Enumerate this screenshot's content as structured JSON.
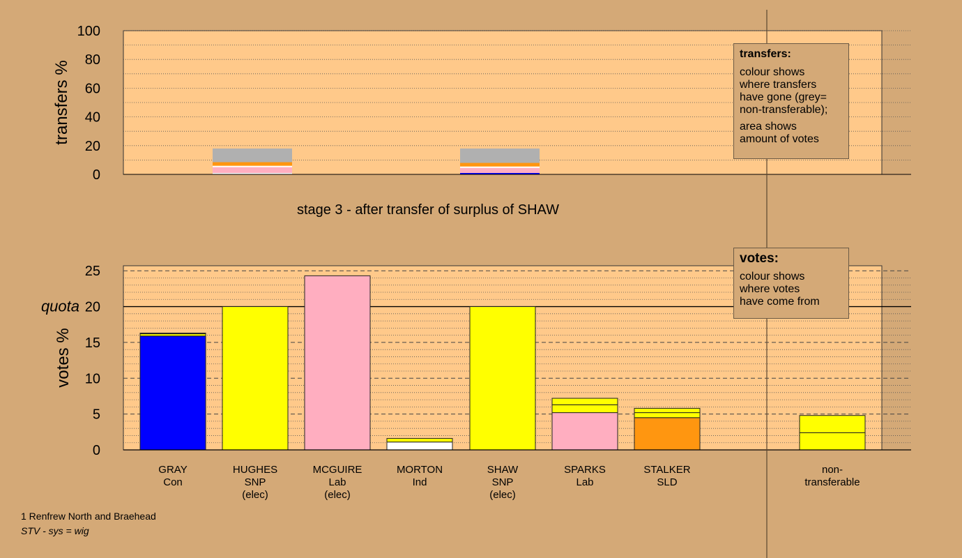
{
  "chart_data": [
    {
      "type": "bar",
      "title": "",
      "ylabel": "transfers %",
      "ylim": [
        0,
        100
      ],
      "yticks": [
        0,
        20,
        40,
        60,
        80,
        100
      ],
      "grid": "dotted",
      "bars": [
        {
          "candidate": "HUGHES",
          "segments": [
            {
              "color": "#ffffff",
              "value": 1
            },
            {
              "color": "#ffaec0",
              "value": 4
            },
            {
              "color": "#ffffff",
              "value": 1
            },
            {
              "color": "#ff9610",
              "value": 2.5
            },
            {
              "color": "#b0b0b0",
              "value": 9.5
            }
          ]
        },
        {
          "candidate": "SHAW",
          "segments": [
            {
              "color": "#0000ff",
              "value": 1
            },
            {
              "color": "#ffaec0",
              "value": 3.5
            },
            {
              "color": "#ffffff",
              "value": 1
            },
            {
              "color": "#ff9610",
              "value": 2.5
            },
            {
              "color": "#b0b0b0",
              "value": 10
            }
          ]
        }
      ]
    },
    {
      "type": "bar",
      "title": "stage 3 - after transfer of surplus of SHAW",
      "ylabel": "votes %",
      "ylim": [
        0,
        25
      ],
      "yticks": [
        0,
        5,
        10,
        15,
        20,
        25
      ],
      "quota": 20,
      "quota_label": "quota",
      "grid": "dashed-and-dotted",
      "categories": [
        {
          "name": "GRAY",
          "party": "Con",
          "status": ""
        },
        {
          "name": "HUGHES",
          "party": "SNP",
          "status": "(elec)"
        },
        {
          "name": "MCGUIRE",
          "party": "Lab",
          "status": "(elec)"
        },
        {
          "name": "MORTON",
          "party": "Ind",
          "status": ""
        },
        {
          "name": "SHAW",
          "party": "SNP",
          "status": "(elec)"
        },
        {
          "name": "SPARKS",
          "party": "Lab",
          "status": ""
        },
        {
          "name": "STALKER",
          "party": "SLD",
          "status": ""
        },
        {
          "name": "",
          "party": "",
          "status": ""
        },
        {
          "name": "non-",
          "party": "transferable",
          "status": ""
        }
      ],
      "bars": [
        {
          "segments": [
            {
              "color": "#0000ff",
              "value": 15.9
            },
            {
              "color": "#ffff00",
              "value": 0.3
            },
            {
              "color": "#ff9610",
              "value": 0.1
            }
          ]
        },
        {
          "segments": [
            {
              "color": "#ffff00",
              "value": 20
            }
          ]
        },
        {
          "segments": [
            {
              "color": "#ffaec0",
              "value": 24.3
            }
          ]
        },
        {
          "segments": [
            {
              "color": "#ffffff",
              "value": 1.1
            },
            {
              "color": "#ffff00",
              "value": 0.5
            }
          ]
        },
        {
          "segments": [
            {
              "color": "#ffff00",
              "value": 20
            }
          ]
        },
        {
          "segments": [
            {
              "color": "#ffaec0",
              "value": 5.2
            },
            {
              "color": "#ffff00",
              "value": 1.1
            },
            {
              "color": "#ffff00",
              "value": 0.9
            }
          ]
        },
        {
          "segments": [
            {
              "color": "#ff9610",
              "value": 4.5
            },
            {
              "color": "#ffff00",
              "value": 0.7
            },
            {
              "color": "#ffff00",
              "value": 0.6
            }
          ]
        },
        {
          "segments": []
        },
        {
          "segments": [
            {
              "color": "#ffff00",
              "value": 2.4
            },
            {
              "color": "#ffff00",
              "value": 2.4
            }
          ]
        }
      ]
    }
  ],
  "legend_transfers": {
    "title": "transfers:",
    "line1": "colour shows\nwhere transfers\nhave gone (grey=\nnon-transferable);",
    "line2": "area shows\namount of votes"
  },
  "legend_votes": {
    "title": "votes:",
    "line1": "colour shows\nwhere votes\nhave come from"
  },
  "footer": {
    "ward": "1 Renfrew North and Braehead",
    "system": "STV - sys = wig"
  },
  "colors": {
    "background": "#d4a977",
    "plot_area": "#ffc98a"
  }
}
